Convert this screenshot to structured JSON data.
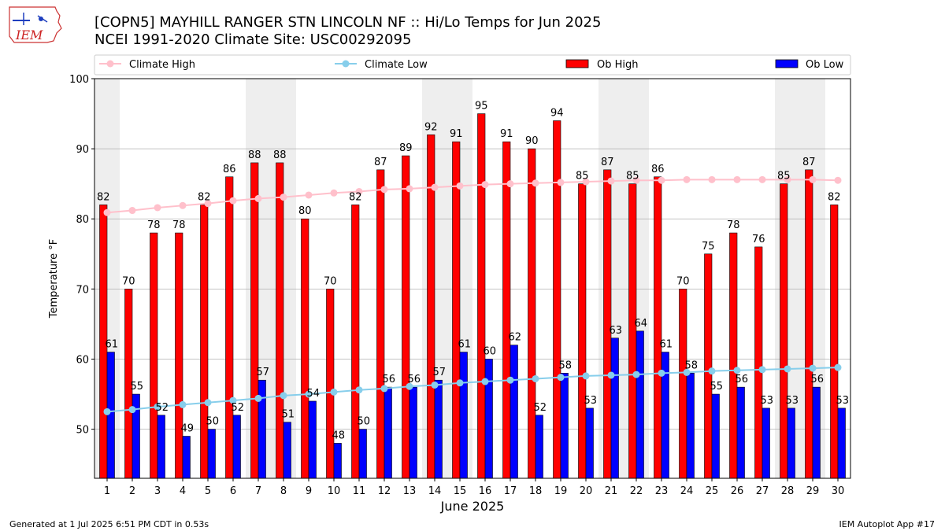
{
  "title_line1": "[COPN5] MAYHILL RANGER STN LINCOLN NF :: Hi/Lo Temps for Jun 2025",
  "title_line2": "NCEI 1991-2020 Climate Site: USC00292095",
  "logo_text": "IEM",
  "footer_left": "Generated at 1 Jul 2025 6:51 PM CDT in 0.53s",
  "footer_right": "IEM Autoplot App #17",
  "colors": {
    "ob_high": "#ff0000",
    "ob_low": "#0000ff",
    "climate_high": "#ffc0cb",
    "climate_low": "#87ceeb",
    "weekend_shade": "#eeeeee"
  },
  "chart_data": {
    "type": "bar",
    "xlabel": "June 2025",
    "ylabel": "Temperature °F",
    "ylim": [
      43,
      100
    ],
    "yticks": [
      50,
      60,
      70,
      80,
      90,
      100
    ],
    "grid": true,
    "legend_placement": "top",
    "x": [
      1,
      2,
      3,
      4,
      5,
      6,
      7,
      8,
      9,
      10,
      11,
      12,
      13,
      14,
      15,
      16,
      17,
      18,
      19,
      20,
      21,
      22,
      23,
      24,
      25,
      26,
      27,
      28,
      29,
      30
    ],
    "shaded_days": [
      1,
      7,
      8,
      14,
      15,
      21,
      22,
      28,
      29
    ],
    "series": [
      {
        "name": "Ob High",
        "kind": "bar",
        "values": [
          82,
          70,
          78,
          78,
          82,
          86,
          88,
          88,
          80,
          70,
          82,
          87,
          89,
          92,
          91,
          95,
          91,
          90,
          94,
          85,
          87,
          85,
          86,
          70,
          75,
          78,
          76,
          85,
          87,
          82
        ]
      },
      {
        "name": "Ob Low",
        "kind": "bar",
        "values": [
          61,
          55,
          52,
          49,
          50,
          52,
          57,
          51,
          54,
          48,
          50,
          56,
          56,
          57,
          61,
          60,
          62,
          52,
          58,
          53,
          63,
          64,
          61,
          58,
          55,
          56,
          53,
          53,
          56,
          53
        ]
      },
      {
        "name": "Climate High",
        "kind": "line",
        "values": [
          80.9,
          81.2,
          81.6,
          81.9,
          82.2,
          82.6,
          82.9,
          83.1,
          83.4,
          83.7,
          83.9,
          84.2,
          84.3,
          84.5,
          84.7,
          84.9,
          85.0,
          85.1,
          85.2,
          85.3,
          85.4,
          85.5,
          85.5,
          85.6,
          85.6,
          85.6,
          85.6,
          85.6,
          85.6,
          85.5
        ]
      },
      {
        "name": "Climate Low",
        "kind": "line",
        "values": [
          52.5,
          52.8,
          53.2,
          53.5,
          53.8,
          54.1,
          54.4,
          54.8,
          55.0,
          55.3,
          55.6,
          55.8,
          56.1,
          56.3,
          56.6,
          56.8,
          57.0,
          57.2,
          57.4,
          57.6,
          57.7,
          57.8,
          58.0,
          58.1,
          58.3,
          58.4,
          58.5,
          58.6,
          58.7,
          58.8
        ]
      }
    ]
  }
}
